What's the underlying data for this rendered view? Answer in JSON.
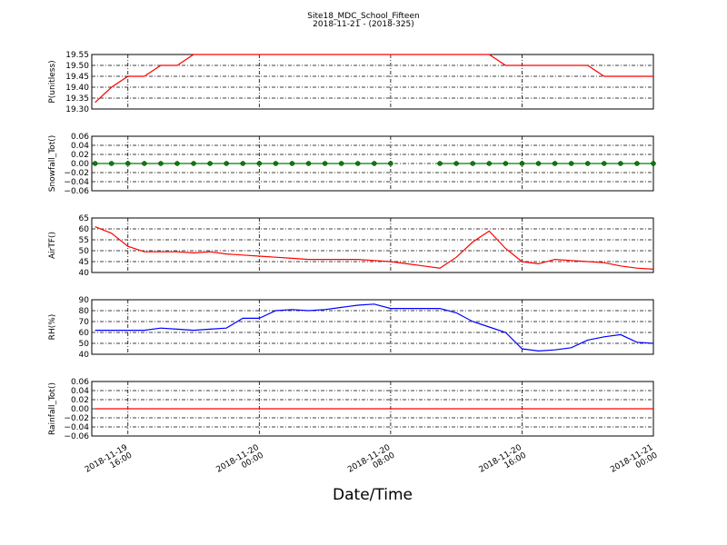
{
  "title": "Site18_MDC_School_Fifteen",
  "subtitle": "2018-11-21 - (2018-325)",
  "xlabel": "Date/Time",
  "x": [
    "2018-11-19 14:00",
    "2018-11-19 15:00",
    "2018-11-19 16:00",
    "2018-11-19 17:00",
    "2018-11-19 18:00",
    "2018-11-19 19:00",
    "2018-11-19 20:00",
    "2018-11-19 21:00",
    "2018-11-19 22:00",
    "2018-11-19 23:00",
    "2018-11-20 00:00",
    "2018-11-20 01:00",
    "2018-11-20 02:00",
    "2018-11-20 03:00",
    "2018-11-20 04:00",
    "2018-11-20 05:00",
    "2018-11-20 06:00",
    "2018-11-20 07:00",
    "2018-11-20 08:00",
    "2018-11-20 09:00",
    "2018-11-20 10:00",
    "2018-11-20 11:00",
    "2018-11-20 12:00",
    "2018-11-20 13:00",
    "2018-11-20 14:00",
    "2018-11-20 15:00",
    "2018-11-20 16:00",
    "2018-11-20 17:00",
    "2018-11-20 18:00",
    "2018-11-20 19:00",
    "2018-11-20 20:00",
    "2018-11-20 21:00",
    "2018-11-20 22:00",
    "2018-11-20 23:00",
    "2018-11-21 00:00"
  ],
  "xlim": [
    "2018-11-19 13:48",
    "2018-11-21 00:00"
  ],
  "xticks": [
    {
      "value": "2018-11-19 16:00",
      "label": "2018-11-19\n16:00"
    },
    {
      "value": "2018-11-20 00:00",
      "label": "2018-11-20\n00:00"
    },
    {
      "value": "2018-11-20 08:00",
      "label": "2018-11-20\n08:00"
    },
    {
      "value": "2018-11-20 16:00",
      "label": "2018-11-20\n16:00"
    },
    {
      "value": "2018-11-21 00:00",
      "label": "2018-11-21\n00:00"
    }
  ],
  "chart_data": [
    {
      "type": "line",
      "ylabel": "P(unitless)",
      "color": "#ff0000",
      "grid": true,
      "ylim": [
        19.3,
        19.55
      ],
      "yticks": [
        {
          "value": 19.3,
          "label": "19.30"
        },
        {
          "value": 19.35,
          "label": "19.35"
        },
        {
          "value": 19.4,
          "label": "19.40"
        },
        {
          "value": 19.45,
          "label": "19.45"
        },
        {
          "value": 19.5,
          "label": "19.50"
        },
        {
          "value": 19.55,
          "label": "19.55"
        }
      ],
      "values": [
        19.33,
        19.4,
        19.45,
        19.45,
        19.5,
        19.5,
        19.55,
        19.55,
        19.55,
        19.55,
        19.55,
        19.55,
        19.55,
        19.55,
        19.55,
        19.55,
        19.55,
        19.55,
        19.55,
        19.55,
        19.55,
        19.55,
        19.55,
        19.55,
        19.55,
        19.5,
        19.5,
        19.5,
        19.5,
        19.5,
        19.5,
        19.45,
        19.45,
        19.45,
        19.45
      ]
    },
    {
      "type": "line",
      "ylabel": "Snowfall_Tot()",
      "color": "#008000",
      "marker": true,
      "grid": true,
      "ylim": [
        -0.06,
        0.06
      ],
      "yticks": [
        {
          "value": -0.06,
          "label": "−0.06"
        },
        {
          "value": -0.04,
          "label": "−0.04"
        },
        {
          "value": -0.02,
          "label": "−0.02"
        },
        {
          "value": 0,
          "label": "0.00"
        },
        {
          "value": 0.02,
          "label": "0.02"
        },
        {
          "value": 0.04,
          "label": "0.04"
        },
        {
          "value": 0.06,
          "label": "0.06"
        }
      ],
      "values": [
        0,
        0,
        0,
        0,
        0,
        0,
        0,
        0,
        0,
        0,
        0,
        0,
        0,
        0,
        0,
        0,
        0,
        0,
        0,
        null,
        null,
        0,
        0,
        0,
        0,
        0,
        0,
        0,
        0,
        0,
        0,
        0,
        0,
        0,
        0
      ]
    },
    {
      "type": "line",
      "ylabel": "AirTF()",
      "color": "#ff0000",
      "grid": true,
      "ylim": [
        40,
        65
      ],
      "yticks": [
        40,
        45,
        50,
        55,
        60,
        65
      ],
      "values": [
        61,
        58,
        52,
        49.5,
        49.5,
        49.5,
        49,
        49.5,
        48.5,
        48,
        47.5,
        47,
        46.5,
        46,
        46,
        46,
        46,
        45.5,
        45,
        44,
        43,
        42,
        47,
        54,
        59,
        51,
        45,
        44,
        46,
        45.5,
        45,
        44.5,
        43,
        42,
        41.5
      ]
    },
    {
      "type": "line",
      "ylabel": "RH(%)",
      "color": "#0000ff",
      "grid": true,
      "ylim": [
        40,
        90
      ],
      "yticks": [
        40,
        50,
        60,
        70,
        80,
        90
      ],
      "values": [
        62,
        62,
        62,
        62,
        64,
        63,
        62,
        63,
        64,
        73,
        73,
        80,
        81,
        80,
        81,
        83,
        85,
        86,
        82,
        82,
        82,
        82,
        78,
        70,
        65,
        60,
        45,
        43,
        44,
        46,
        53,
        56,
        58,
        51,
        50
      ]
    },
    {
      "type": "line",
      "ylabel": "Rainfall_Tot()",
      "color": "#ff0000",
      "grid": true,
      "ylim": [
        -0.06,
        0.06
      ],
      "yticks": [
        {
          "value": -0.06,
          "label": "−0.06"
        },
        {
          "value": -0.04,
          "label": "−0.04"
        },
        {
          "value": -0.02,
          "label": "−0.02"
        },
        {
          "value": 0,
          "label": "0.00"
        },
        {
          "value": 0.02,
          "label": "0.02"
        },
        {
          "value": 0.04,
          "label": "0.04"
        },
        {
          "value": 0.06,
          "label": "0.06"
        }
      ],
      "values": [
        0,
        0,
        0,
        0,
        0,
        0,
        0,
        0,
        0,
        0,
        0,
        0,
        0,
        0,
        0,
        0,
        0,
        0,
        0,
        0,
        0,
        0,
        0,
        0,
        0,
        0,
        0,
        0,
        0,
        0,
        0,
        0,
        0,
        0,
        0
      ]
    }
  ]
}
